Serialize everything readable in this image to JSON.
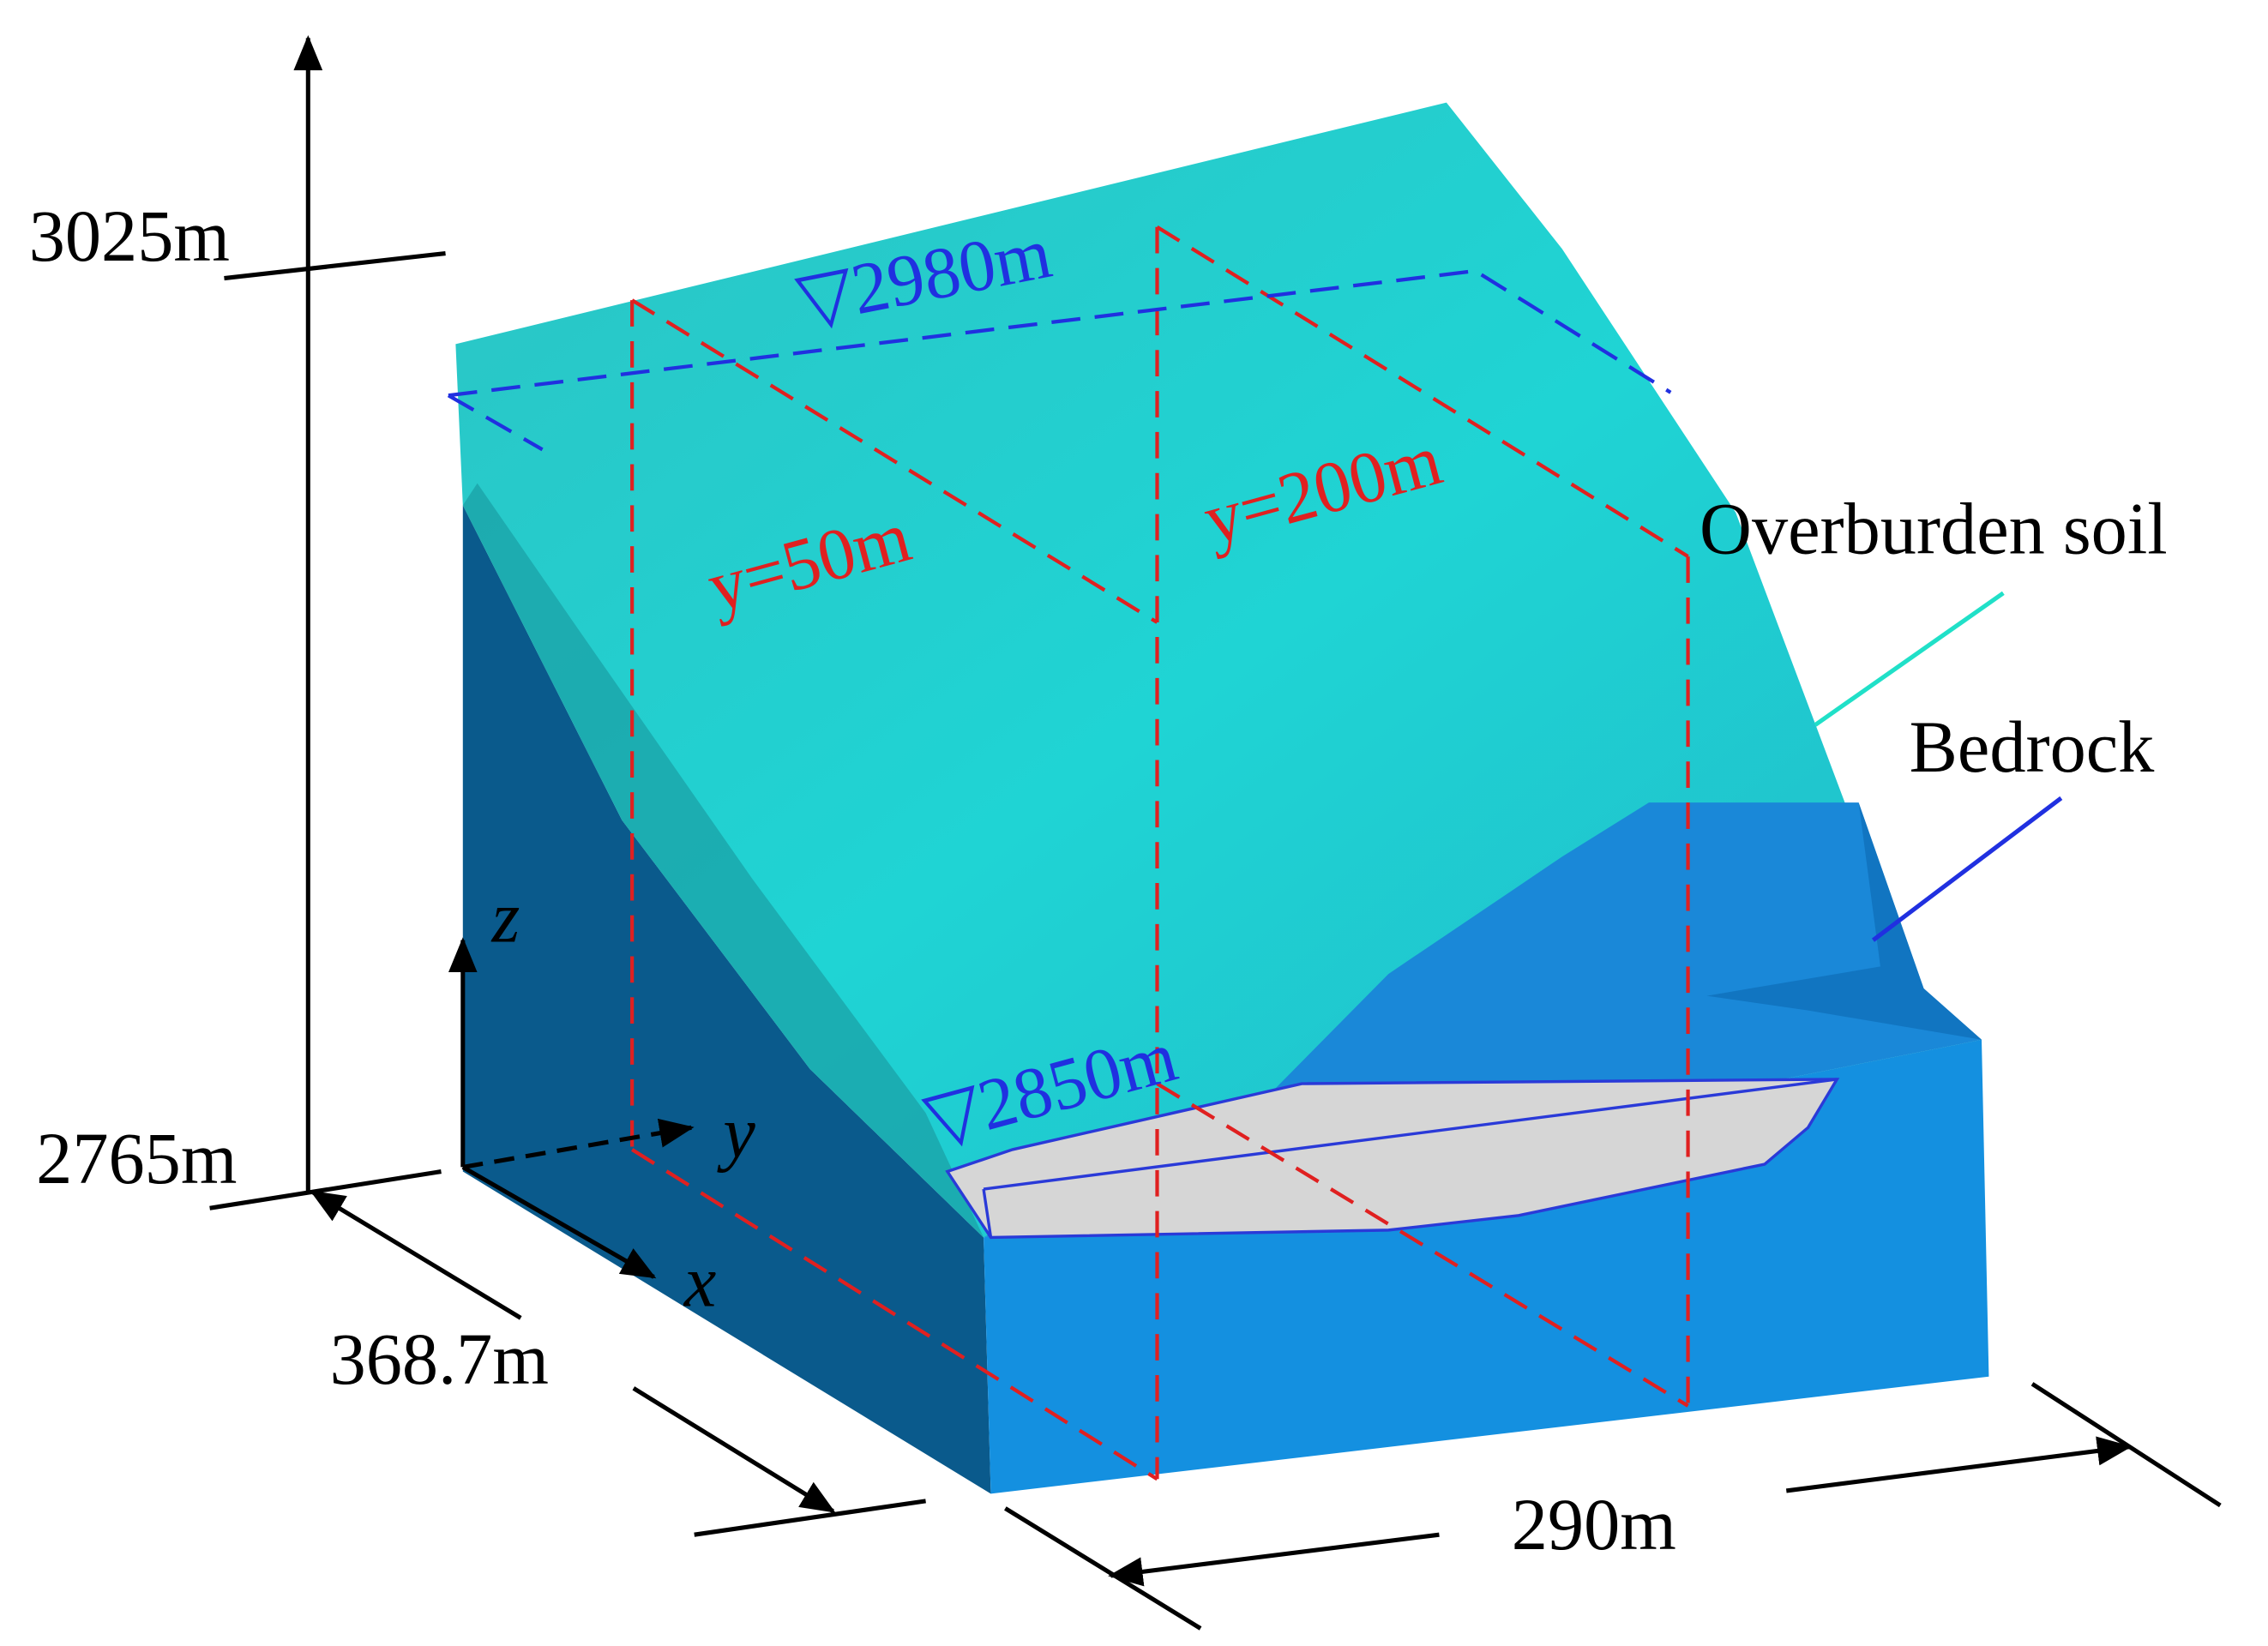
{
  "elevation_top": "3025m",
  "elevation_bottom": "2765m",
  "water_level_upper": "▽2980m",
  "water_level_lower": "▽2850m",
  "section_1": "y=50m",
  "section_2": "y=200m",
  "legend": {
    "overburden": "Overburden soil",
    "bedrock": "Bedrock"
  },
  "dimension_x": "368.7m",
  "dimension_y": "290m",
  "axes": {
    "x": "x",
    "y": "y",
    "z": "z"
  }
}
